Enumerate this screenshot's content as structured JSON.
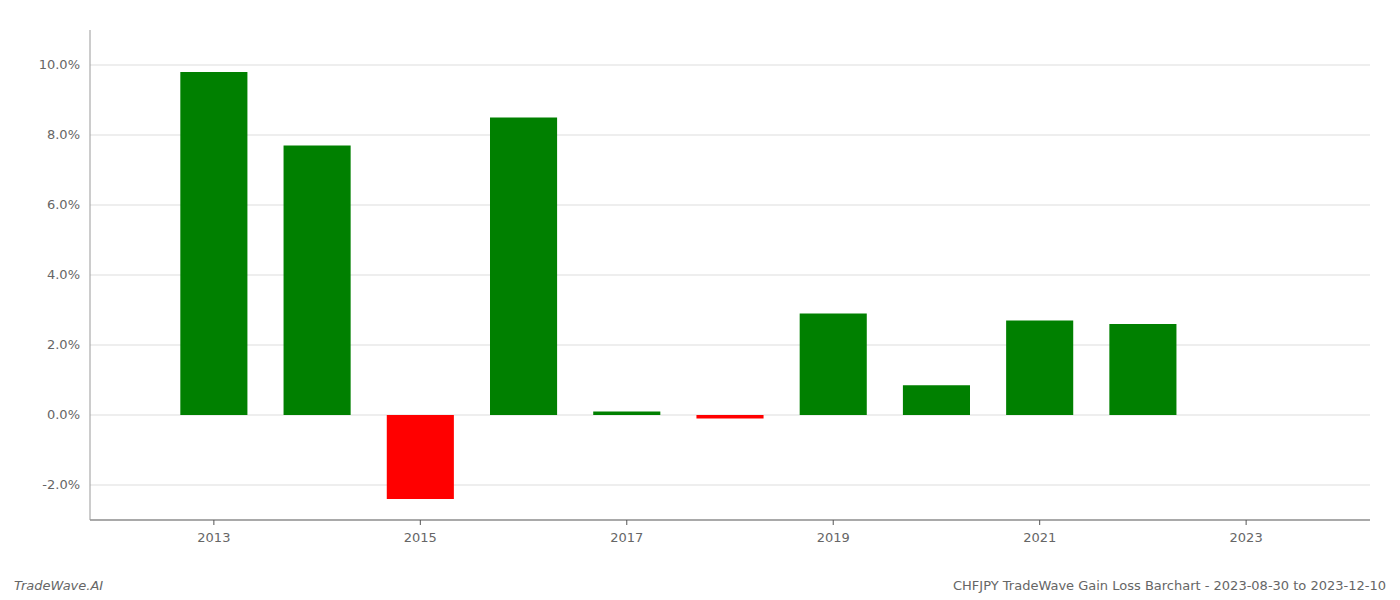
{
  "chart_data": {
    "type": "bar",
    "x": [
      2013,
      2014,
      2015,
      2016,
      2017,
      2018,
      2019,
      2020,
      2021,
      2022
    ],
    "values": [
      0.098,
      0.077,
      -0.024,
      0.085,
      0.001,
      -0.001,
      0.029,
      0.0085,
      0.027,
      0.026
    ],
    "colors": [
      "#008000",
      "#008000",
      "#ff0000",
      "#008000",
      "#008000",
      "#ff0000",
      "#008000",
      "#008000",
      "#008000",
      "#008000"
    ],
    "xlim": [
      2011.8,
      2024.2
    ],
    "xticks": [
      2013,
      2015,
      2017,
      2019,
      2021,
      2023
    ],
    "ylim": [
      -0.03,
      0.11
    ],
    "yticks": [
      {
        "value": -0.02,
        "label": "-2.0%"
      },
      {
        "value": 0.0,
        "label": "0.0%"
      },
      {
        "value": 0.02,
        "label": "2.0%"
      },
      {
        "value": 0.04,
        "label": "4.0%"
      },
      {
        "value": 0.06,
        "label": "6.0%"
      },
      {
        "value": 0.08,
        "label": "8.0%"
      },
      {
        "value": 0.1,
        "label": "10.0%"
      }
    ],
    "grid": true,
    "annotations": [
      "TradeWave.AI",
      "CHFJPY TradeWave Gain Loss Barchart - 2023-08-30 to 2023-12-10"
    ]
  }
}
